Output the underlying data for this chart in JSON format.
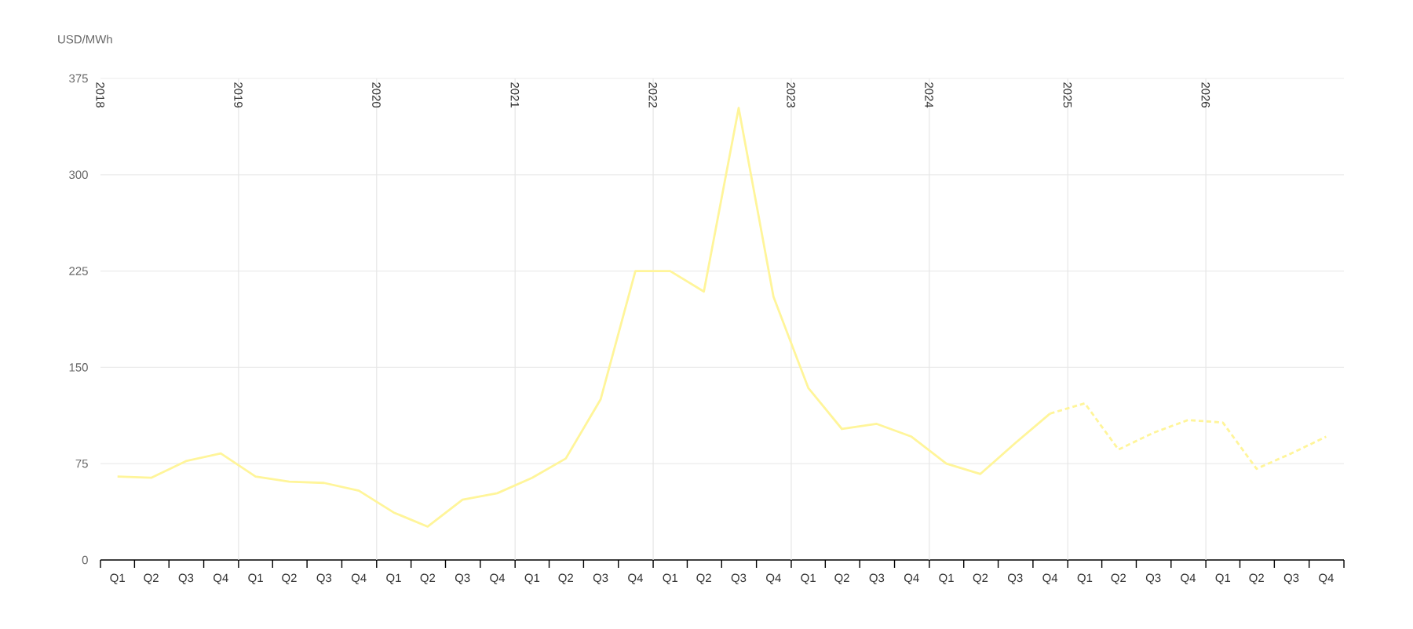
{
  "chart_data": {
    "type": "line",
    "ylabel": "USD/MWh",
    "x": [
      "2018-02-15",
      "2018-05-15",
      "2018-08-15",
      "2018-11-15",
      "2019-02-15",
      "2019-05-15",
      "2019-08-15",
      "2019-11-15",
      "2020-02-15",
      "2020-05-15",
      "2020-08-15",
      "2020-11-15",
      "2021-02-15",
      "2021-05-15",
      "2021-08-15",
      "2021-11-15",
      "2022-02-15",
      "2022-05-15",
      "2022-08-15",
      "2022-11-15",
      "2023-02-15",
      "2023-05-15",
      "2023-08-15",
      "2023-11-15",
      "2024-02-15",
      "2024-05-15",
      "2024-08-15",
      "2024-11-15",
      "2025-02-15",
      "2025-05-15",
      "2025-08-15",
      "2025-11-15",
      "2026-02-15",
      "2026-05-15",
      "2026-08-15",
      "2026-11-15"
    ],
    "series": [
      {
        "color": "#fff59a",
        "line_style": "solid",
        "values": [
          65,
          64,
          77,
          83,
          65,
          61,
          60,
          54,
          37,
          26,
          47,
          52,
          64,
          79,
          125,
          225,
          225,
          209,
          352,
          205,
          134,
          102,
          106,
          96,
          75,
          67,
          91,
          114,
          null,
          null,
          null,
          null,
          null,
          null,
          null,
          null
        ]
      },
      {
        "color": "#fff59a",
        "line_style": "dashed",
        "values": [
          null,
          null,
          null,
          null,
          null,
          null,
          null,
          null,
          null,
          null,
          null,
          null,
          null,
          null,
          null,
          null,
          null,
          null,
          null,
          null,
          null,
          null,
          null,
          null,
          null,
          null,
          null,
          114,
          122,
          86,
          99,
          109,
          107,
          71,
          83,
          96
        ]
      }
    ],
    "xlim": [
      "2018-01-01",
      "2027-01-01"
    ],
    "xticks": [
      {
        "value": "2018-01-01",
        "label": null
      },
      {
        "value": "2018-02-15",
        "label": "Q1"
      },
      {
        "value": "2018-04-01",
        "label": null
      },
      {
        "value": "2018-05-15",
        "label": "Q2"
      },
      {
        "value": "2018-07-01",
        "label": null
      },
      {
        "value": "2018-08-15",
        "label": "Q3"
      },
      {
        "value": "2018-10-01",
        "label": null
      },
      {
        "value": "2018-11-15",
        "label": "Q4"
      },
      {
        "value": "2019-01-01",
        "label": null
      },
      {
        "value": "2019-02-15",
        "label": "Q1"
      },
      {
        "value": "2019-04-01",
        "label": null
      },
      {
        "value": "2019-05-15",
        "label": "Q2"
      },
      {
        "value": "2019-07-01",
        "label": null
      },
      {
        "value": "2019-08-15",
        "label": "Q3"
      },
      {
        "value": "2019-10-01",
        "label": null
      },
      {
        "value": "2019-11-15",
        "label": "Q4"
      },
      {
        "value": "2020-01-01",
        "label": null
      },
      {
        "value": "2020-02-15",
        "label": "Q1"
      },
      {
        "value": "2020-04-01",
        "label": null
      },
      {
        "value": "2020-05-15",
        "label": "Q2"
      },
      {
        "value": "2020-07-01",
        "label": null
      },
      {
        "value": "2020-08-15",
        "label": "Q3"
      },
      {
        "value": "2020-10-01",
        "label": null
      },
      {
        "value": "2020-11-15",
        "label": "Q4"
      },
      {
        "value": "2021-01-01",
        "label": null
      },
      {
        "value": "2021-02-15",
        "label": "Q1"
      },
      {
        "value": "2021-04-01",
        "label": null
      },
      {
        "value": "2021-05-15",
        "label": "Q2"
      },
      {
        "value": "2021-07-01",
        "label": null
      },
      {
        "value": "2021-08-15",
        "label": "Q3"
      },
      {
        "value": "2021-10-01",
        "label": null
      },
      {
        "value": "2021-11-15",
        "label": "Q4"
      },
      {
        "value": "2022-01-01",
        "label": null
      },
      {
        "value": "2022-02-15",
        "label": "Q1"
      },
      {
        "value": "2022-04-01",
        "label": null
      },
      {
        "value": "2022-05-15",
        "label": "Q2"
      },
      {
        "value": "2022-07-01",
        "label": null
      },
      {
        "value": "2022-08-15",
        "label": "Q3"
      },
      {
        "value": "2022-10-01",
        "label": null
      },
      {
        "value": "2022-11-15",
        "label": "Q4"
      },
      {
        "value": "2023-01-01",
        "label": null
      },
      {
        "value": "2023-02-15",
        "label": "Q1"
      },
      {
        "value": "2023-04-01",
        "label": null
      },
      {
        "value": "2023-05-15",
        "label": "Q2"
      },
      {
        "value": "2023-07-01",
        "label": null
      },
      {
        "value": "2023-08-15",
        "label": "Q3"
      },
      {
        "value": "2023-10-01",
        "label": null
      },
      {
        "value": "2023-11-15",
        "label": "Q4"
      },
      {
        "value": "2024-01-01",
        "label": null
      },
      {
        "value": "2024-02-15",
        "label": "Q1"
      },
      {
        "value": "2024-04-01",
        "label": null
      },
      {
        "value": "2024-05-15",
        "label": "Q2"
      },
      {
        "value": "2024-07-01",
        "label": null
      },
      {
        "value": "2024-08-15",
        "label": "Q3"
      },
      {
        "value": "2024-10-01",
        "label": null
      },
      {
        "value": "2024-11-15",
        "label": "Q4"
      },
      {
        "value": "2025-01-01",
        "label": null
      },
      {
        "value": "2025-02-15",
        "label": "Q1"
      },
      {
        "value": "2025-04-01",
        "label": null
      },
      {
        "value": "2025-05-15",
        "label": "Q2"
      },
      {
        "value": "2025-07-01",
        "label": null
      },
      {
        "value": "2025-08-15",
        "label": "Q3"
      },
      {
        "value": "2025-10-01",
        "label": null
      },
      {
        "value": "2025-11-15",
        "label": "Q4"
      },
      {
        "value": "2026-01-01",
        "label": null
      },
      {
        "value": "2026-02-15",
        "label": "Q1"
      },
      {
        "value": "2026-04-01",
        "label": null
      },
      {
        "value": "2026-05-15",
        "label": "Q2"
      },
      {
        "value": "2026-07-01",
        "label": null
      },
      {
        "value": "2026-08-15",
        "label": "Q3"
      },
      {
        "value": "2026-10-01",
        "label": null
      },
      {
        "value": "2026-11-15",
        "label": "Q4"
      },
      {
        "value": "2027-01-01",
        "label": null
      }
    ],
    "annotations": [
      "2018"
    ],
    "ylim": [
      0,
      375
    ],
    "yticks": [
      0,
      75,
      150,
      225,
      300,
      375
    ],
    "grid": "y",
    "ref_lines": [
      {
        "axis": "x",
        "value": "2019-01-01",
        "label": "2019",
        "color": "#e6e6e6"
      },
      {
        "axis": "x",
        "value": "2020-01-01",
        "label": "2020",
        "color": "#e6e6e6"
      },
      {
        "axis": "x",
        "value": "2021-01-01",
        "label": "2021",
        "color": "#e6e6e6"
      },
      {
        "axis": "x",
        "value": "2022-01-01",
        "label": "2022",
        "color": "#e6e6e6"
      },
      {
        "axis": "x",
        "value": "2023-01-01",
        "label": "2023",
        "color": "#e6e6e6"
      },
      {
        "axis": "x",
        "value": "2024-01-01",
        "label": "2024",
        "color": "#e6e6e6"
      },
      {
        "axis": "x",
        "value": "2025-01-01",
        "label": "2025",
        "color": "#e6e6e6"
      },
      {
        "axis": "x",
        "value": "2026-01-01",
        "label": "2026",
        "color": "#e6e6e6"
      }
    ]
  }
}
